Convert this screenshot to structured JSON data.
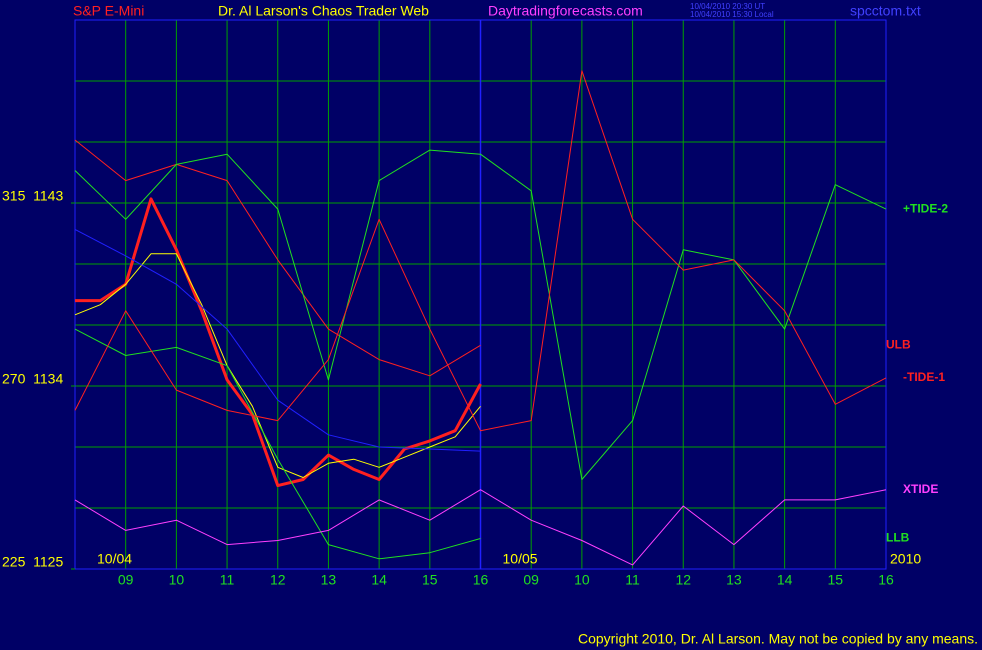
{
  "chart_data": {
    "type": "line",
    "title": "Dr. Al Larson's Chaos Trader Web",
    "symbol": "S&P E-Mini",
    "site": "Daytradingforecasts.com",
    "timestamps": [
      "10/04/2010 20:30 UT",
      "10/04/2010 15:30 Local"
    ],
    "file": "spcctom.txt",
    "copyright": "Copyright 2010, Dr. Al Larson. May not be copied by any means.",
    "date_labels": [
      {
        "x": 0,
        "label": "10/04"
      },
      {
        "x": 8,
        "label": "10/05"
      },
      {
        "x": 16,
        "label": "2010"
      }
    ],
    "xlim": [
      0,
      16
    ],
    "xticks": [
      {
        "value": 1,
        "label": "09"
      },
      {
        "value": 2,
        "label": "10"
      },
      {
        "value": 3,
        "label": "11"
      },
      {
        "value": 4,
        "label": "12"
      },
      {
        "value": 5,
        "label": "13"
      },
      {
        "value": 6,
        "label": "14"
      },
      {
        "value": 7,
        "label": "15"
      },
      {
        "value": 8,
        "label": "16"
      },
      {
        "value": 9,
        "label": "09"
      },
      {
        "value": 10,
        "label": "10"
      },
      {
        "value": 11,
        "label": "11"
      },
      {
        "value": 12,
        "label": "12"
      },
      {
        "value": 13,
        "label": "13"
      },
      {
        "value": 14,
        "label": "14"
      },
      {
        "value": 15,
        "label": "15"
      },
      {
        "value": 16,
        "label": "16"
      }
    ],
    "session_break": 8,
    "ylim": [
      1125,
      1152
    ],
    "yticks": [
      {
        "value": 1125,
        "label": "225  1125"
      },
      {
        "value": 1134,
        "label": "270  1134"
      },
      {
        "value": 1143,
        "label": "315  1143"
      }
    ],
    "ygrid": [
      1125,
      1128,
      1131,
      1134,
      1137,
      1140,
      1143,
      1146,
      1149,
      1152
    ],
    "grid": true,
    "series": [
      {
        "color": "#ff2020",
        "width": 3,
        "x": [
          0,
          0.5,
          1,
          1.5,
          2,
          2.5,
          3,
          3.5,
          4,
          4.5,
          5,
          5.5,
          6,
          6.5,
          7,
          7.5,
          8
        ],
        "values": [
          1138.2,
          1138.2,
          1139.0,
          1143.2,
          1140.7,
          1137.7,
          1134.3,
          1132.6,
          1129.1,
          1129.4,
          1130.6,
          1129.9,
          1129.4,
          1130.9,
          1131.3,
          1131.8,
          1134.1
        ]
      },
      {
        "color": "#ffff00",
        "width": 1,
        "x": [
          0,
          0.5,
          1,
          1.5,
          2,
          2.5,
          3,
          3.5,
          4,
          4.5,
          5,
          5.5,
          6,
          6.5,
          7,
          7.5,
          8
        ],
        "values": [
          1137.5,
          1138,
          1139,
          1140.5,
          1140.5,
          1138,
          1135,
          1133,
          1130,
          1129.5,
          1130.2,
          1130.4,
          1130,
          1130.5,
          1131,
          1131.5,
          1133
        ]
      },
      {
        "color": "#2020ff",
        "width": 1,
        "x": [
          0,
          1,
          2,
          3,
          4,
          5,
          6,
          7,
          8
        ],
        "values": [
          1141.7,
          1140.4,
          1139.0,
          1136.8,
          1133.3,
          1131.6,
          1131.0,
          1130.9,
          1130.8
        ]
      },
      {
        "name": "ULB",
        "color": "#ff2020",
        "width": 1,
        "x": [
          0,
          1,
          2,
          3,
          4,
          5,
          6,
          7,
          8
        ],
        "values": [
          1146.1,
          1144.1,
          1144.9,
          1144.1,
          1140.2,
          1136.8,
          1135.3,
          1134.5,
          1136.0
        ]
      },
      {
        "name": "LLB",
        "color": "#20e020",
        "width": 1,
        "x": [
          0,
          1,
          2,
          3,
          4,
          5,
          6,
          7,
          8
        ],
        "values": [
          1136.8,
          1135.5,
          1135.9,
          1135.0,
          1130.4,
          1126.2,
          1125.5,
          1125.8,
          1126.5
        ]
      },
      {
        "name": "+TIDE-2",
        "color": "#20e020",
        "width": 1,
        "x": [
          0,
          1,
          2,
          3,
          4,
          5,
          6,
          7,
          8,
          9,
          10,
          11,
          12,
          13,
          14,
          15,
          16
        ],
        "values": [
          1144.6,
          1142.2,
          1144.9,
          1145.4,
          1142.7,
          1134.3,
          1144.1,
          1145.6,
          1145.4,
          1143.6,
          1129.4,
          1132.3,
          1140.7,
          1140.2,
          1136.8,
          1143.9,
          1142.7
        ]
      },
      {
        "name": "-TIDE-1",
        "color": "#ff2020",
        "width": 1,
        "x": [
          0,
          1,
          2,
          3,
          4,
          5,
          6,
          7,
          8,
          9,
          10,
          11,
          12,
          13,
          14,
          15,
          16
        ],
        "values": [
          1132.8,
          1137.7,
          1133.8,
          1132.8,
          1132.3,
          1135.3,
          1142.2,
          1136.8,
          1131.8,
          1132.3,
          1149.5,
          1142.2,
          1139.7,
          1140.2,
          1137.7,
          1133.1,
          1134.4
        ]
      },
      {
        "name": "XTIDE",
        "color": "#ff40ff",
        "width": 1,
        "x": [
          0,
          1,
          2,
          3,
          4,
          5,
          6,
          7,
          8,
          9,
          10,
          11,
          12,
          13,
          14,
          15,
          16
        ],
        "values": [
          1128.4,
          1126.9,
          1127.4,
          1126.2,
          1126.4,
          1126.9,
          1128.4,
          1127.4,
          1128.9,
          1127.4,
          1126.4,
          1125.2,
          1128.1,
          1126.2,
          1128.4,
          1128.4,
          1128.9
        ]
      }
    ]
  }
}
